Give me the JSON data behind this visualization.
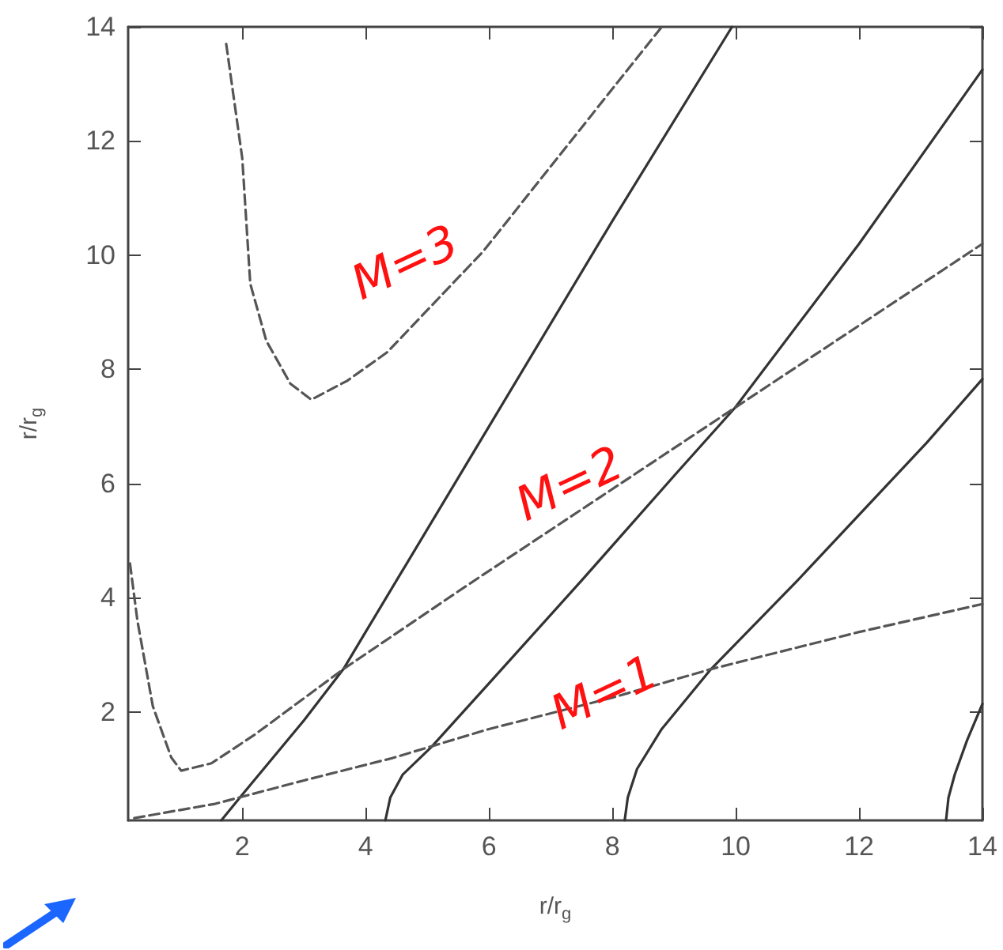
{
  "chart_data": {
    "type": "line",
    "xlabel": "r/r$_{g}$",
    "ylabel": "r/r$_{g}$",
    "xlim": [
      0.15,
      14
    ],
    "ylim": [
      0.1,
      14
    ],
    "xticks": [
      2,
      4,
      6,
      8,
      10,
      12,
      14
    ],
    "yticks": [
      2,
      4,
      6,
      8,
      10,
      12,
      14
    ],
    "grid": false,
    "marker": "none",
    "series": [
      {
        "color": "#333333",
        "line_style": "solid",
        "x": [
          1.66,
          2.0,
          3.0,
          3.64,
          4.0,
          6.0,
          8.0,
          9.94
        ],
        "values": [
          0.1,
          0.55,
          1.85,
          2.75,
          3.4,
          7.0,
          10.6,
          14
        ]
      },
      {
        "color": "#333333",
        "line_style": "solid",
        "x": [
          4.32,
          4.4,
          4.6,
          5.07,
          6.0,
          7.5,
          9.03,
          9.99,
          12.0,
          14.0
        ],
        "values": [
          0.1,
          0.5,
          0.9,
          1.39,
          2.5,
          4.3,
          6.17,
          7.33,
          10.2,
          13.25
        ]
      },
      {
        "color": "#333333",
        "line_style": "solid",
        "x": [
          8.2,
          8.25,
          8.4,
          8.8,
          9.6,
          11.0,
          13.1,
          14.0
        ],
        "values": [
          0.1,
          0.5,
          1.0,
          1.7,
          2.75,
          4.3,
          6.72,
          7.83
        ]
      },
      {
        "color": "#333333",
        "line_style": "solid",
        "x": [
          13.41,
          13.45,
          13.55,
          13.75,
          14.0
        ],
        "values": [
          0.1,
          0.5,
          0.9,
          1.5,
          2.14
        ]
      },
      {
        "color": "#555555",
        "line_style": "dashed",
        "x": [
          0.25,
          1.56,
          3.0,
          4.43,
          6.0,
          8.0,
          9.6,
          12.0,
          14.0
        ],
        "values": [
          0.14,
          0.39,
          0.8,
          1.19,
          1.7,
          2.25,
          2.75,
          3.4,
          3.89
        ]
      },
      {
        "color": "#555555",
        "line_style": "dashed",
        "x": [
          0.18,
          0.3,
          0.55,
          0.85,
          1.01,
          1.5,
          2.2,
          3.64,
          5.65,
          9.99,
          14.0
        ],
        "values": [
          4.6,
          3.6,
          2.1,
          1.2,
          0.97,
          1.1,
          1.6,
          2.75,
          4.22,
          7.33,
          10.2
        ]
      },
      {
        "color": "#555555",
        "line_style": "dashed",
        "x": [
          1.74,
          2.0,
          2.13,
          2.39,
          2.78,
          3.12,
          3.7,
          4.35,
          5.9,
          8.8
        ],
        "values": [
          13.7,
          11.7,
          9.5,
          8.5,
          7.75,
          7.47,
          7.8,
          8.3,
          10.06,
          14
        ]
      }
    ],
    "annotations": [
      "M=3",
      "M=2",
      "M=1"
    ]
  }
}
